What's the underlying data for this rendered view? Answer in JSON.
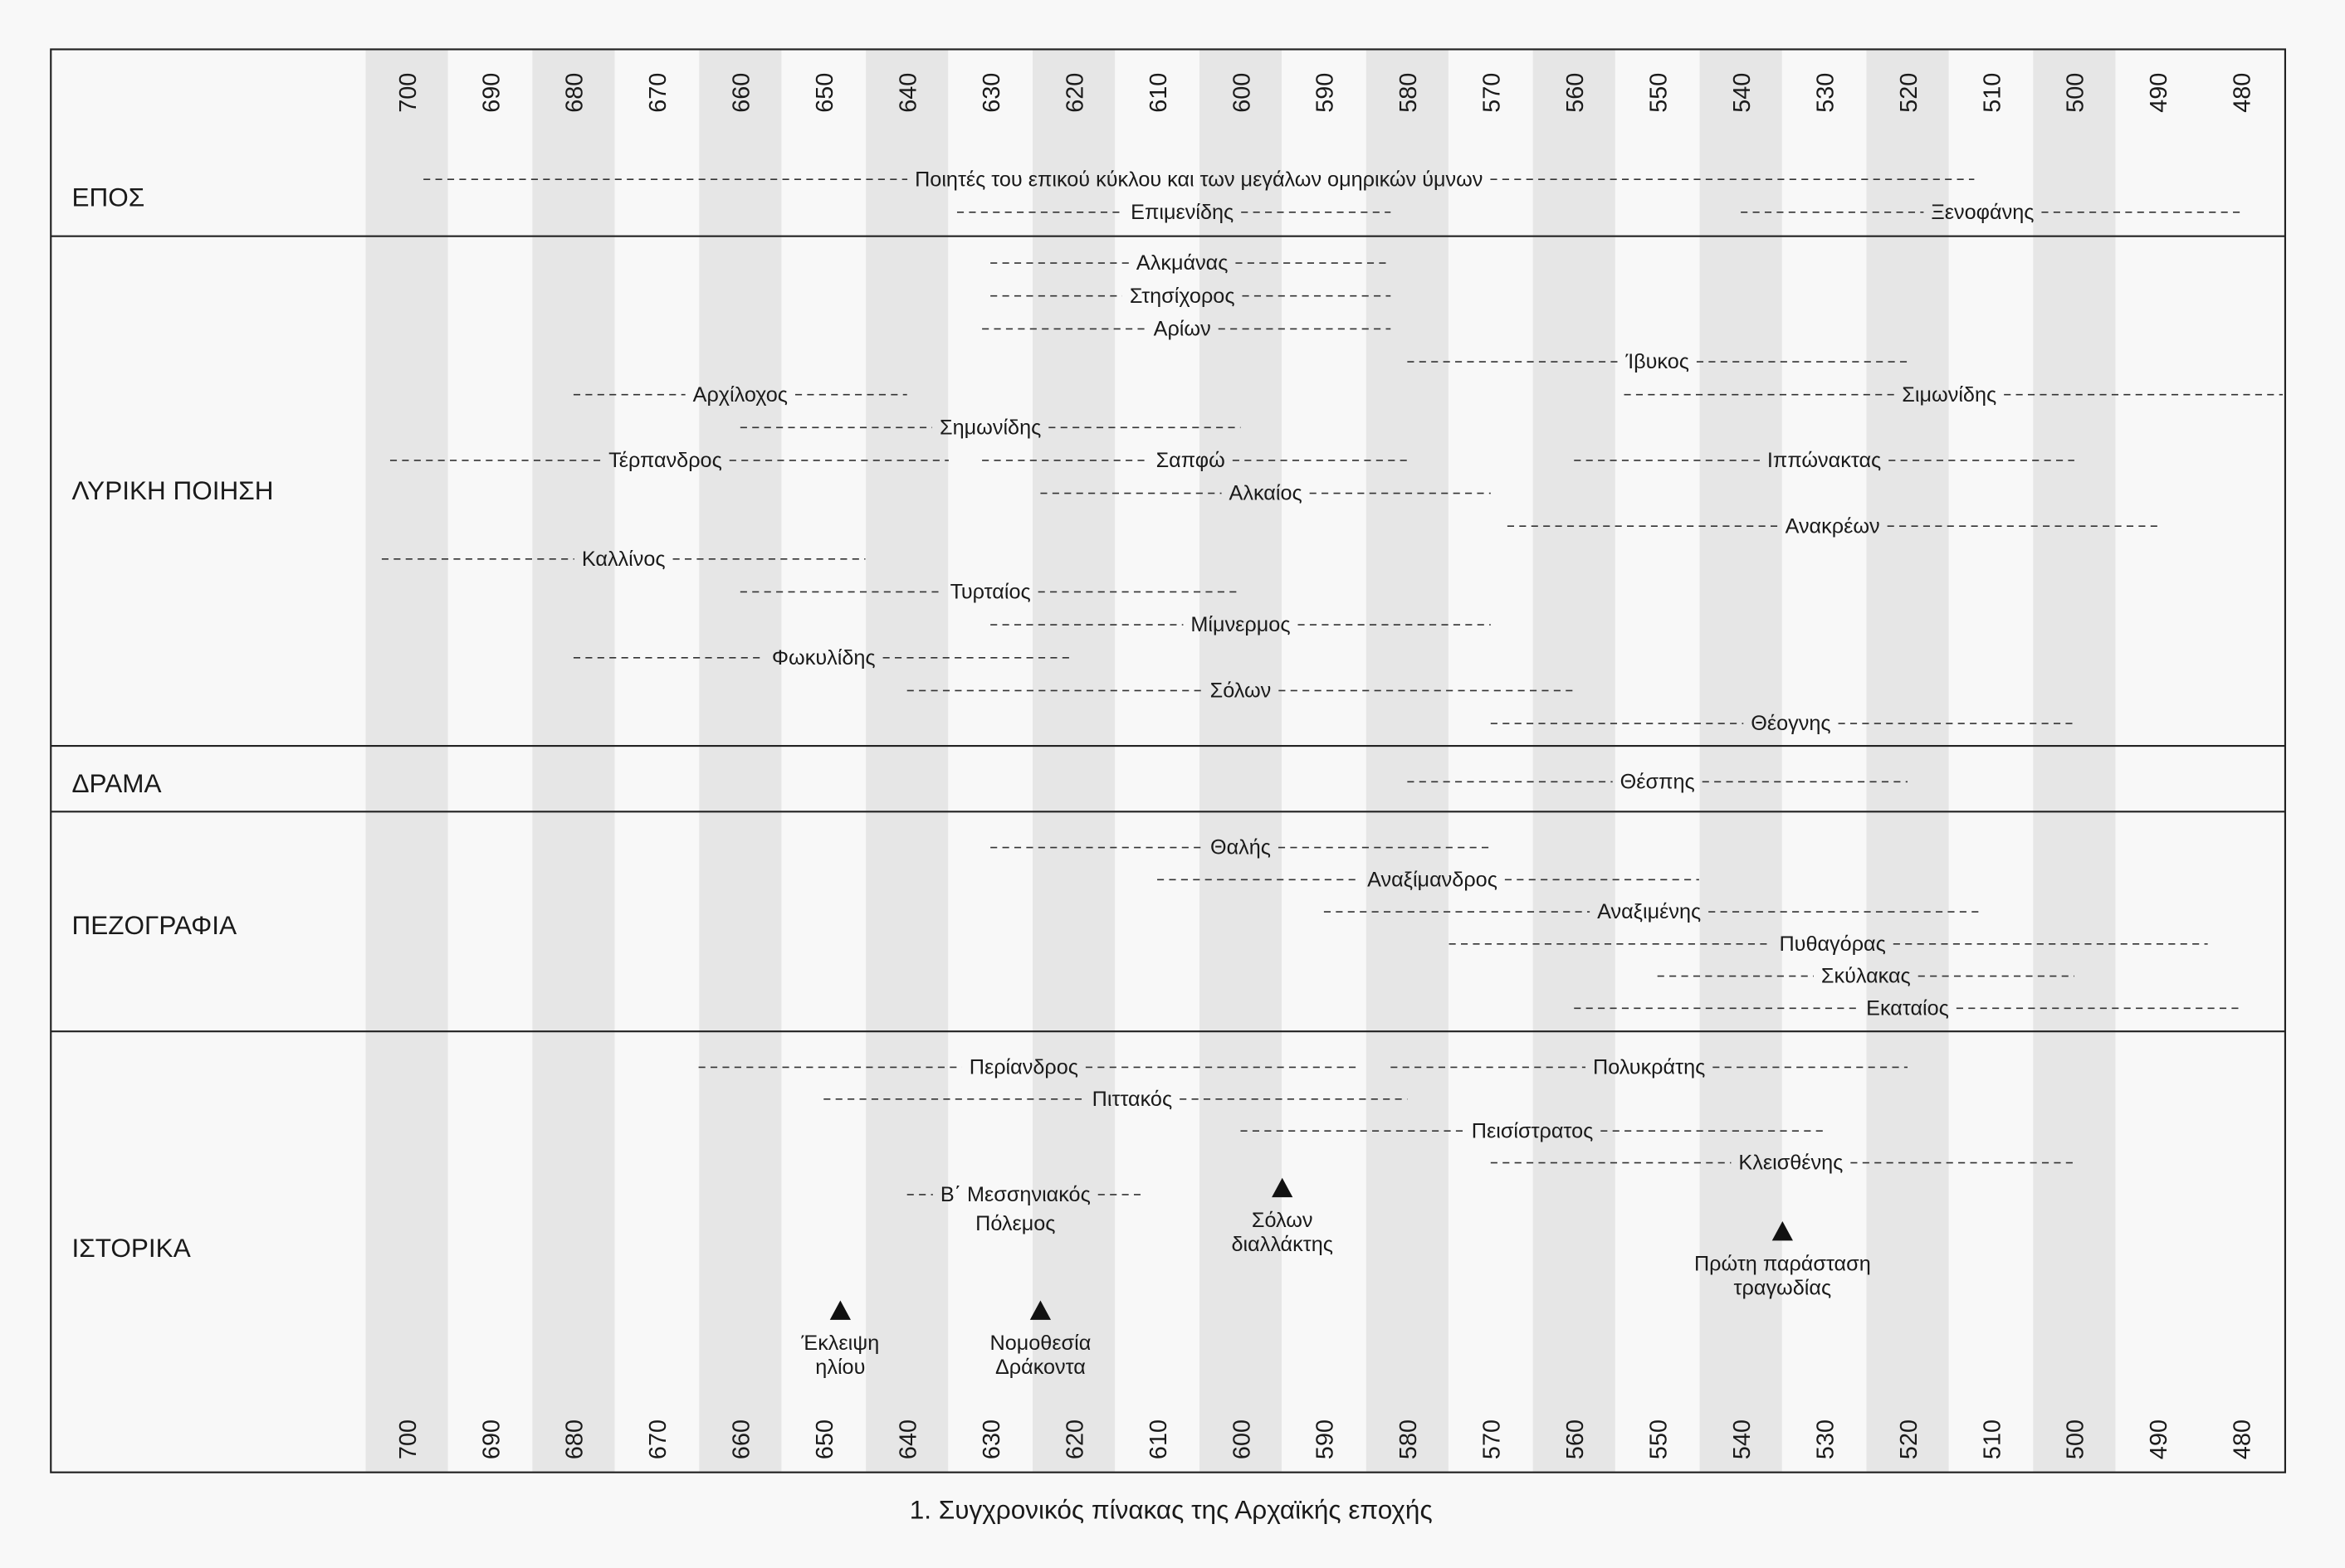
{
  "caption": "1. Συγχρονικός πίνακας της Αρχαϊκής εποχής",
  "chart_data": {
    "type": "timeline",
    "x_axis": {
      "ticks": [
        700,
        690,
        680,
        670,
        660,
        650,
        640,
        630,
        620,
        610,
        600,
        590,
        580,
        570,
        560,
        550,
        540,
        530,
        520,
        510,
        500,
        490,
        480
      ],
      "range": [
        700,
        480
      ],
      "unit": "BC year",
      "shaded_bands": [
        700,
        680,
        660,
        640,
        620,
        600,
        580,
        560,
        540,
        520,
        500
      ]
    },
    "sections": [
      {
        "title": "ΕΠΟΣ",
        "items": [
          {
            "name": "Ποιητές του επικού κύκλου και των μεγάλων ομηρικών ύμνων",
            "start": 698,
            "end": 512,
            "label_at": 605,
            "row": 0
          },
          {
            "name": "Επιμενίδης",
            "start": 634,
            "end": 582,
            "label_at": 607,
            "row": 1
          },
          {
            "name": "Ξενοφάνης",
            "start": 540,
            "end": 480,
            "label_at": 511,
            "row": 1
          }
        ]
      },
      {
        "title": "ΛΥΡΙΚΗ ΠΟΙΗΣΗ",
        "items": [
          {
            "name": "Αλκμάνας",
            "start": 630,
            "end": 582,
            "label_at": 607,
            "row": 0
          },
          {
            "name": "Στησίχορος",
            "start": 630,
            "end": 582,
            "label_at": 607,
            "row": 1
          },
          {
            "name": "Αρίων",
            "start": 631,
            "end": 582,
            "label_at": 607,
            "row": 2
          },
          {
            "name": "Ίβυκος",
            "start": 580,
            "end": 520,
            "label_at": 550,
            "row": 3
          },
          {
            "name": "Αρχίλοχος",
            "start": 680,
            "end": 640,
            "label_at": 660,
            "row": 4
          },
          {
            "name": "Σιμωνίδης",
            "start": 554,
            "end": 475,
            "label_at": 515,
            "row": 4
          },
          {
            "name": "Σημωνίδης",
            "start": 660,
            "end": 600,
            "label_at": 630,
            "row": 5
          },
          {
            "name": "Τέρπανδρος",
            "start": 702,
            "end": 635,
            "label_at": 669,
            "row": 6
          },
          {
            "name": "Σαπφώ",
            "start": 631,
            "end": 580,
            "label_at": 606,
            "row": 6
          },
          {
            "name": "Ιππώνακτας",
            "start": 560,
            "end": 500,
            "label_at": 530,
            "row": 6
          },
          {
            "name": "Αλκαίος",
            "start": 624,
            "end": 570,
            "label_at": 597,
            "row": 7
          },
          {
            "name": "Ανακρέων",
            "start": 568,
            "end": 490,
            "label_at": 529,
            "row": 8
          },
          {
            "name": "Καλλίνος",
            "start": 703,
            "end": 645,
            "label_at": 674,
            "row": 9
          },
          {
            "name": "Τυρταίος",
            "start": 660,
            "end": 600,
            "label_at": 630,
            "row": 10
          },
          {
            "name": "Μίμνερμος",
            "start": 630,
            "end": 570,
            "label_at": 600,
            "row": 11
          },
          {
            "name": "Φωκυλίδης",
            "start": 680,
            "end": 620,
            "label_at": 650,
            "row": 12
          },
          {
            "name": "Σόλων",
            "start": 640,
            "end": 560,
            "label_at": 600,
            "row": 13
          },
          {
            "name": "Θέογνης",
            "start": 570,
            "end": 500,
            "label_at": 534,
            "row": 14
          }
        ]
      },
      {
        "title": "ΔΡΑΜΑ",
        "items": [
          {
            "name": "Θέσπης",
            "start": 580,
            "end": 520,
            "label_at": 550,
            "row": 0
          }
        ]
      },
      {
        "title": "ΠΕΖΟΓΡΑΦΙΑ",
        "items": [
          {
            "name": "Θαλής",
            "start": 630,
            "end": 570,
            "label_at": 600,
            "row": 0
          },
          {
            "name": "Αναξίμανδρος",
            "start": 610,
            "end": 545,
            "label_at": 577,
            "row": 1
          },
          {
            "name": "Αναξιμένης",
            "start": 590,
            "end": 511,
            "label_at": 551,
            "row": 2
          },
          {
            "name": "Πυθαγόρας",
            "start": 575,
            "end": 484,
            "label_at": 529,
            "row": 3
          },
          {
            "name": "Σκύλακας",
            "start": 550,
            "end": 500,
            "label_at": 525,
            "row": 4
          },
          {
            "name": "Εκαταίος",
            "start": 560,
            "end": 480,
            "label_at": 520,
            "row": 5
          }
        ]
      },
      {
        "title": "ΙΣΤΟΡΙΚΑ",
        "items": [
          {
            "name": "Περίανδρος",
            "start": 665,
            "end": 586,
            "label_at": 626,
            "row": 0
          },
          {
            "name": "Πολυκράτης",
            "start": 582,
            "end": 520,
            "label_at": 551,
            "row": 0
          },
          {
            "name": "Πιττακός",
            "start": 650,
            "end": 580,
            "label_at": 613,
            "row": 1
          },
          {
            "name": "Πεισίστρατος",
            "start": 600,
            "end": 530,
            "label_at": 565,
            "row": 2
          },
          {
            "name": "Κλεισθένης",
            "start": 570,
            "end": 500,
            "label_at": 534,
            "row": 3
          },
          {
            "name": "Β΄ Μεσσηνιακός",
            "name2": "Πόλεμος",
            "start": 640,
            "end": 612,
            "label_at": 627,
            "row": 4
          }
        ],
        "events": [
          {
            "lines": [
              "Σόλων",
              "διαλλάκτης"
            ],
            "year": 595,
            "tier": 0
          },
          {
            "lines": [
              "Πρώτη παράσταση",
              "τραγωδίας"
            ],
            "year": 535,
            "tier": 1
          },
          {
            "lines": [
              "Έκλειψη",
              "ηλίου"
            ],
            "year": 648,
            "tier": 2
          },
          {
            "lines": [
              "Νομοθεσία",
              "Δράκοντα"
            ],
            "year": 624,
            "tier": 2
          }
        ]
      }
    ]
  }
}
